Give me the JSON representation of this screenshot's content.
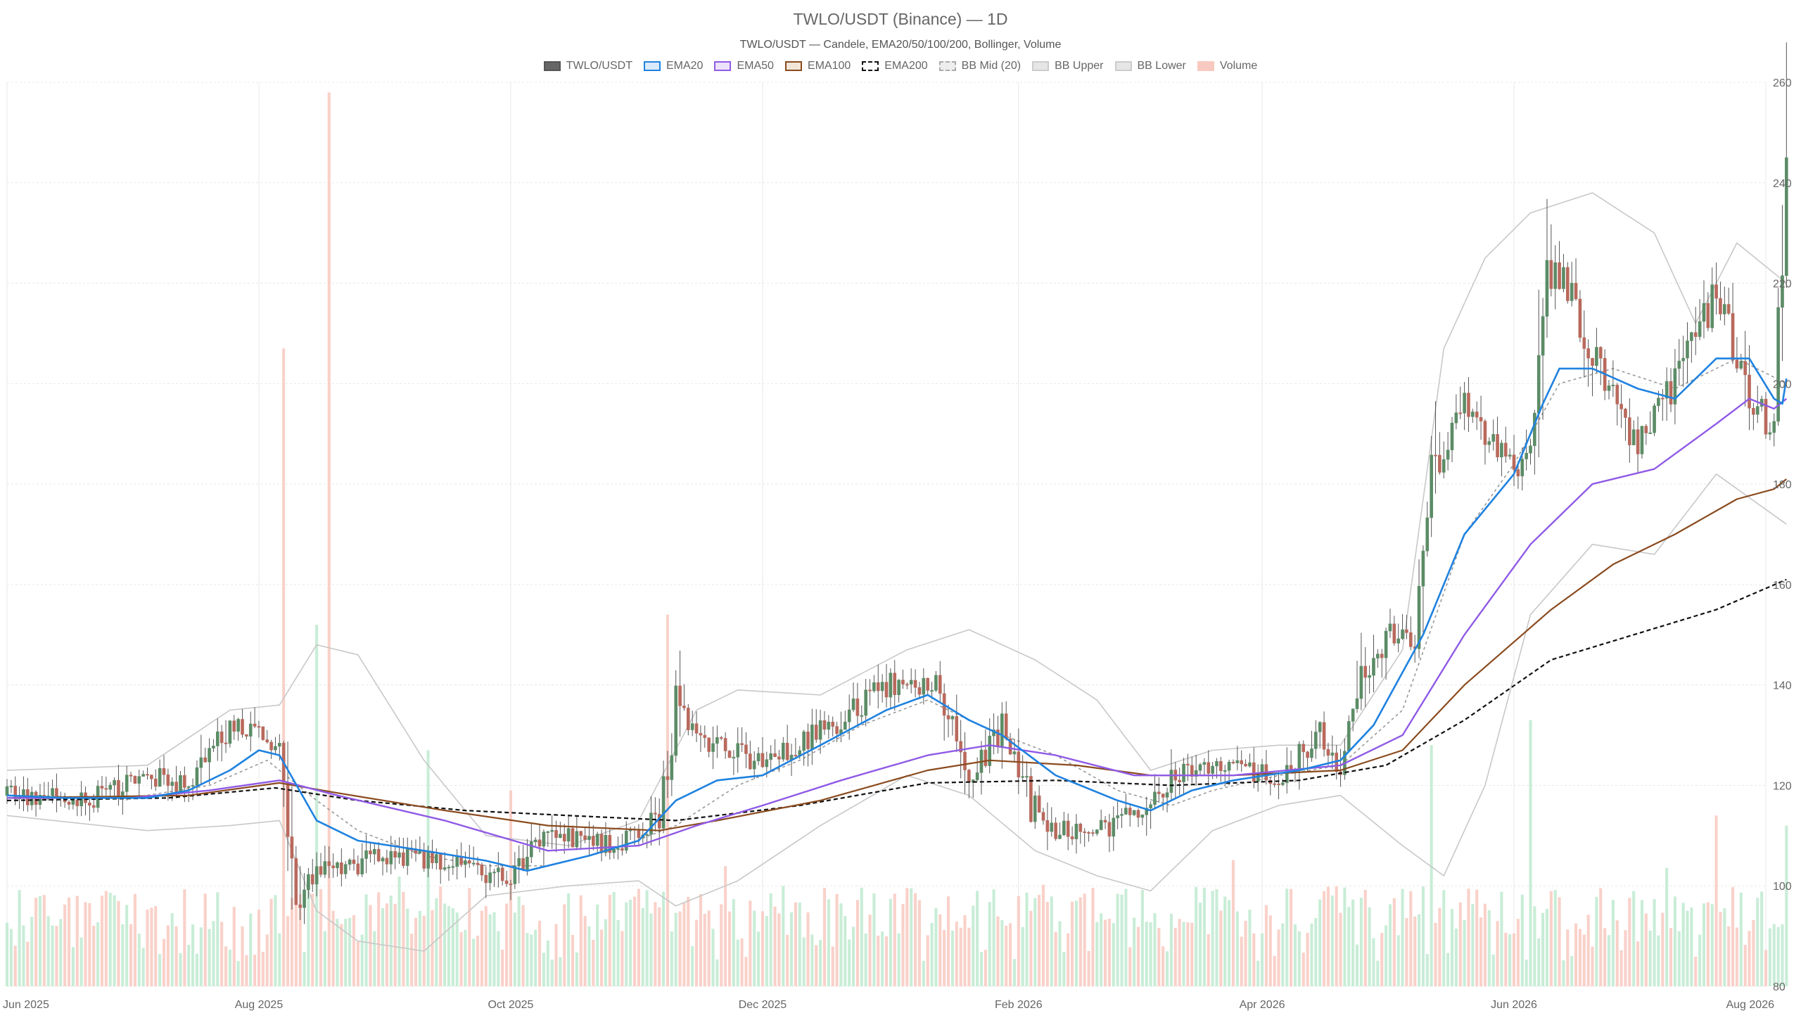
{
  "chart_data": {
    "type": "candlestick",
    "title": "TWLO/USDT (Binance) — 1D",
    "subtitle": "TWLO/USDT — Candele, EMA20/50/100/200, Bollinger, Volume",
    "legend": {
      "placement": "top-center",
      "items": [
        {
          "label": "TWLO/USDT",
          "fill": "#666666",
          "border": "#555555",
          "dashed": false
        },
        {
          "label": "EMA20",
          "fill": "#dbeafa",
          "border": "#1f82e0",
          "dashed": false
        },
        {
          "label": "EMA50",
          "fill": "#ece3fb",
          "border": "#8f5ae6",
          "dashed": false
        },
        {
          "label": "EMA100",
          "fill": "#f2e6d9",
          "border": "#8a4a1e",
          "dashed": false
        },
        {
          "label": "EMA200",
          "fill": "#ffffff",
          "border": "#111111",
          "dashed": true
        },
        {
          "label": "BB Mid (20)",
          "fill": "#eeeeee",
          "border": "#aaaaaa",
          "dashed": true
        },
        {
          "label": "BB Upper",
          "fill": "#e6e6e6",
          "border": "#cccccc",
          "dashed": false
        },
        {
          "label": "BB Lower",
          "fill": "#e6e6e6",
          "border": "#cccccc",
          "dashed": false
        },
        {
          "label": "Volume",
          "fill": "#f8c9c0",
          "border": "#f8c9c0",
          "dashed": false
        }
      ]
    },
    "x_axis": {
      "range": [
        "2025-06-01",
        "2026-08-01"
      ],
      "ticks": [
        {
          "date": "2025-06-01",
          "label": "Jun 2025"
        },
        {
          "date": "2025-08-01",
          "label": "Aug 2025"
        },
        {
          "date": "2025-10-01",
          "label": "Oct 2025"
        },
        {
          "date": "2025-12-01",
          "label": "Dec 2025"
        },
        {
          "date": "2026-02-01",
          "label": "Feb 2026"
        },
        {
          "date": "2026-04-01",
          "label": "Apr 2026"
        },
        {
          "date": "2026-06-01",
          "label": "Jun 2026"
        },
        {
          "date": "2026-08-01",
          "label": "Aug 2026"
        }
      ]
    },
    "y_axis": {
      "position": "right",
      "range": [
        80,
        260
      ],
      "ticks": [
        80,
        100,
        120,
        140,
        160,
        180,
        200,
        220,
        240,
        260
      ]
    },
    "grid": true,
    "colors": {
      "up": "#5b8c66",
      "down": "#b9695c",
      "volume_up": "#bfead0",
      "volume_down": "#f8c9c0",
      "ema20": "#1f82e0",
      "ema50": "#8f5ae6",
      "ema100": "#8a4a1e",
      "ema200": "#111111",
      "bb_mid": "#999999",
      "bb_band": "#c8c8c8",
      "grid": "#e8e8e8"
    },
    "price_anchors": [
      [
        "2025-06-01",
        118
      ],
      [
        "2025-06-20",
        117
      ],
      [
        "2025-07-05",
        122
      ],
      [
        "2025-07-15",
        120
      ],
      [
        "2025-07-25",
        132
      ],
      [
        "2025-08-06",
        128
      ],
      [
        "2025-08-10",
        100
      ],
      [
        "2025-08-18",
        103
      ],
      [
        "2025-09-01",
        106
      ],
      [
        "2025-09-20",
        104
      ],
      [
        "2025-10-01",
        101
      ],
      [
        "2025-10-10",
        110
      ],
      [
        "2025-10-25",
        108
      ],
      [
        "2025-11-06",
        113
      ],
      [
        "2025-11-10",
        134
      ],
      [
        "2025-11-20",
        128
      ],
      [
        "2025-12-01",
        124
      ],
      [
        "2025-12-20",
        133
      ],
      [
        "2025-12-31",
        140
      ],
      [
        "2026-01-12",
        140
      ],
      [
        "2026-01-20",
        122
      ],
      [
        "2026-01-28",
        132
      ],
      [
        "2026-02-06",
        112
      ],
      [
        "2026-02-18",
        110
      ],
      [
        "2026-03-01",
        114
      ],
      [
        "2026-03-10",
        122
      ],
      [
        "2026-03-25",
        124
      ],
      [
        "2026-04-05",
        121
      ],
      [
        "2026-04-15",
        130
      ],
      [
        "2026-04-20",
        123
      ],
      [
        "2026-04-25",
        140
      ],
      [
        "2026-05-01",
        150
      ],
      [
        "2026-05-08",
        148
      ],
      [
        "2026-05-12",
        180
      ],
      [
        "2026-05-20",
        195
      ],
      [
        "2026-06-01",
        182
      ],
      [
        "2026-06-05",
        188
      ],
      [
        "2026-06-08",
        226
      ],
      [
        "2026-06-15",
        218
      ],
      [
        "2026-06-20",
        205
      ],
      [
        "2026-07-01",
        188
      ],
      [
        "2026-07-10",
        200
      ],
      [
        "2026-07-20",
        218
      ],
      [
        "2026-07-28",
        198
      ],
      [
        "2026-08-03",
        190
      ],
      [
        "2026-08-05",
        228
      ],
      [
        "2026-08-06",
        245
      ]
    ],
    "volume_spikes": [
      [
        "2025-08-07",
        207
      ],
      [
        "2025-08-18",
        258
      ],
      [
        "2025-08-15",
        152
      ],
      [
        "2025-11-08",
        154
      ],
      [
        "2025-09-11",
        127
      ],
      [
        "2025-10-01",
        119
      ],
      [
        "2026-05-12",
        128
      ],
      [
        "2026-06-05",
        133
      ],
      [
        "2026-07-20",
        114
      ],
      [
        "2026-08-06",
        112
      ]
    ],
    "series": {
      "ema20": [
        [
          "2025-06-01",
          118
        ],
        [
          "2025-06-15",
          117.5
        ],
        [
          "2025-07-05",
          117.5
        ],
        [
          "2025-07-15",
          119
        ],
        [
          "2025-07-25",
          123
        ],
        [
          "2025-08-01",
          127
        ],
        [
          "2025-08-06",
          126
        ],
        [
          "2025-08-15",
          113
        ],
        [
          "2025-08-25",
          109
        ],
        [
          "2025-09-10",
          107
        ],
        [
          "2025-09-25",
          105
        ],
        [
          "2025-10-05",
          103
        ],
        [
          "2025-10-20",
          106
        ],
        [
          "2025-11-01",
          109
        ],
        [
          "2025-11-10",
          117
        ],
        [
          "2025-11-20",
          121
        ],
        [
          "2025-12-01",
          122
        ],
        [
          "2025-12-15",
          128
        ],
        [
          "2025-12-31",
          135
        ],
        [
          "2026-01-10",
          138
        ],
        [
          "2026-01-20",
          133
        ],
        [
          "2026-01-28",
          130
        ],
        [
          "2026-02-10",
          122
        ],
        [
          "2026-02-25",
          117
        ],
        [
          "2026-03-05",
          115
        ],
        [
          "2026-03-15",
          119
        ],
        [
          "2026-03-25",
          121
        ],
        [
          "2026-04-10",
          123
        ],
        [
          "2026-04-20",
          125
        ],
        [
          "2026-04-28",
          132
        ],
        [
          "2026-05-10",
          150
        ],
        [
          "2026-05-20",
          170
        ],
        [
          "2026-06-01",
          182
        ],
        [
          "2026-06-08",
          196
        ],
        [
          "2026-06-12",
          203
        ],
        [
          "2026-06-20",
          203
        ],
        [
          "2026-07-01",
          199
        ],
        [
          "2026-07-10",
          197
        ],
        [
          "2026-07-20",
          205
        ],
        [
          "2026-07-28",
          205
        ],
        [
          "2026-08-03",
          197
        ],
        [
          "2026-08-05",
          196
        ],
        [
          "2026-08-06",
          201
        ]
      ],
      "ema50": [
        [
          "2025-06-01",
          117.5
        ],
        [
          "2025-07-01",
          117.5
        ],
        [
          "2025-07-20",
          119
        ],
        [
          "2025-08-06",
          121
        ],
        [
          "2025-08-20",
          118
        ],
        [
          "2025-09-15",
          113
        ],
        [
          "2025-10-10",
          107
        ],
        [
          "2025-11-01",
          108
        ],
        [
          "2025-11-15",
          112
        ],
        [
          "2025-12-01",
          116
        ],
        [
          "2025-12-20",
          121
        ],
        [
          "2026-01-10",
          126
        ],
        [
          "2026-01-25",
          128
        ],
        [
          "2026-02-10",
          126
        ],
        [
          "2026-03-01",
          122
        ],
        [
          "2026-03-25",
          122
        ],
        [
          "2026-04-20",
          124
        ],
        [
          "2026-05-05",
          130
        ],
        [
          "2026-05-20",
          150
        ],
        [
          "2026-06-05",
          168
        ],
        [
          "2026-06-20",
          180
        ],
        [
          "2026-07-05",
          183
        ],
        [
          "2026-07-20",
          192
        ],
        [
          "2026-07-28",
          197
        ],
        [
          "2026-08-03",
          195
        ],
        [
          "2026-08-06",
          197
        ]
      ],
      "ema100": [
        [
          "2025-06-01",
          117.5
        ],
        [
          "2025-07-15",
          118
        ],
        [
          "2025-08-06",
          120.5
        ],
        [
          "2025-08-20",
          118.5
        ],
        [
          "2025-09-15",
          115
        ],
        [
          "2025-10-10",
          112
        ],
        [
          "2025-11-06",
          111
        ],
        [
          "2025-11-20",
          113
        ],
        [
          "2025-12-15",
          117
        ],
        [
          "2026-01-10",
          123
        ],
        [
          "2026-01-25",
          125
        ],
        [
          "2026-02-15",
          124
        ],
        [
          "2026-03-05",
          122
        ],
        [
          "2026-03-25",
          122
        ],
        [
          "2026-04-20",
          123
        ],
        [
          "2026-05-05",
          127
        ],
        [
          "2026-05-20",
          140
        ],
        [
          "2026-06-10",
          155
        ],
        [
          "2026-06-25",
          164
        ],
        [
          "2026-07-10",
          170
        ],
        [
          "2026-07-25",
          177
        ],
        [
          "2026-08-03",
          179
        ],
        [
          "2026-08-06",
          181
        ]
      ],
      "ema200": [
        [
          "2025-06-01",
          117
        ],
        [
          "2025-07-10",
          117.5
        ],
        [
          "2025-08-05",
          119.5
        ],
        [
          "2025-08-25",
          117
        ],
        [
          "2025-09-20",
          115
        ],
        [
          "2025-10-15",
          114
        ],
        [
          "2025-11-10",
          113
        ],
        [
          "2025-12-10",
          116
        ],
        [
          "2026-01-10",
          120.5
        ],
        [
          "2026-02-10",
          121
        ],
        [
          "2026-03-10",
          120
        ],
        [
          "2026-04-10",
          121
        ],
        [
          "2026-05-01",
          124
        ],
        [
          "2026-05-20",
          133
        ],
        [
          "2026-06-10",
          145
        ],
        [
          "2026-06-30",
          150
        ],
        [
          "2026-07-20",
          155
        ],
        [
          "2026-08-06",
          161
        ]
      ],
      "bb_mid": [
        [
          "2025-06-01",
          118
        ],
        [
          "2025-07-01",
          117.5
        ],
        [
          "2025-07-20",
          120
        ],
        [
          "2025-08-03",
          125
        ],
        [
          "2025-08-15",
          117
        ],
        [
          "2025-08-25",
          111
        ],
        [
          "2025-09-10",
          106
        ],
        [
          "2025-09-25",
          104
        ],
        [
          "2025-10-10",
          104
        ],
        [
          "2025-10-25",
          107
        ],
        [
          "2025-11-10",
          112
        ],
        [
          "2025-11-25",
          120
        ],
        [
          "2025-12-10",
          125
        ],
        [
          "2025-12-25",
          132
        ],
        [
          "2026-01-10",
          137
        ],
        [
          "2026-01-25",
          131
        ],
        [
          "2026-02-10",
          126
        ],
        [
          "2026-02-25",
          119
        ],
        [
          "2026-03-10",
          116
        ],
        [
          "2026-03-20",
          119
        ],
        [
          "2026-04-05",
          122
        ],
        [
          "2026-04-20",
          124
        ],
        [
          "2026-05-05",
          135
        ],
        [
          "2026-05-20",
          170
        ],
        [
          "2026-06-01",
          184
        ],
        [
          "2026-06-12",
          200
        ],
        [
          "2026-06-25",
          203
        ],
        [
          "2026-07-10",
          199
        ],
        [
          "2026-07-25",
          205
        ],
        [
          "2026-08-06",
          200
        ]
      ],
      "bb_upper": [
        [
          "2025-06-01",
          123
        ],
        [
          "2025-07-05",
          124
        ],
        [
          "2025-07-25",
          135
        ],
        [
          "2025-08-06",
          136
        ],
        [
          "2025-08-15",
          148
        ],
        [
          "2025-08-25",
          146
        ],
        [
          "2025-09-10",
          125
        ],
        [
          "2025-09-25",
          110
        ],
        [
          "2025-10-15",
          108
        ],
        [
          "2025-11-01",
          113
        ],
        [
          "2025-11-15",
          135
        ],
        [
          "2025-11-25",
          139
        ],
        [
          "2025-12-15",
          138
        ],
        [
          "2026-01-05",
          147
        ],
        [
          "2026-01-20",
          151
        ],
        [
          "2026-02-05",
          145
        ],
        [
          "2026-02-20",
          137
        ],
        [
          "2026-03-05",
          123
        ],
        [
          "2026-03-20",
          127
        ],
        [
          "2026-04-05",
          128
        ],
        [
          "2026-04-20",
          128
        ],
        [
          "2026-05-05",
          147
        ],
        [
          "2026-05-15",
          207
        ],
        [
          "2026-05-25",
          225
        ],
        [
          "2026-06-05",
          234
        ],
        [
          "2026-06-20",
          238
        ],
        [
          "2026-07-05",
          230
        ],
        [
          "2026-07-15",
          212
        ],
        [
          "2026-07-25",
          228
        ],
        [
          "2026-08-06",
          220
        ]
      ],
      "bb_lower": [
        [
          "2025-06-01",
          114
        ],
        [
          "2025-07-05",
          111
        ],
        [
          "2025-07-25",
          112
        ],
        [
          "2025-08-06",
          113
        ],
        [
          "2025-08-15",
          95
        ],
        [
          "2025-08-25",
          89
        ],
        [
          "2025-09-10",
          87
        ],
        [
          "2025-09-25",
          98
        ],
        [
          "2025-10-15",
          100
        ],
        [
          "2025-11-01",
          101
        ],
        [
          "2025-11-10",
          96
        ],
        [
          "2025-11-25",
          101
        ],
        [
          "2025-12-15",
          112
        ],
        [
          "2026-01-05",
          122
        ],
        [
          "2026-01-20",
          118
        ],
        [
          "2026-02-05",
          107
        ],
        [
          "2026-02-20",
          102
        ],
        [
          "2026-03-05",
          99
        ],
        [
          "2026-03-20",
          111
        ],
        [
          "2026-04-05",
          116
        ],
        [
          "2026-04-20",
          118
        ],
        [
          "2026-05-05",
          108
        ],
        [
          "2026-05-15",
          102
        ],
        [
          "2026-05-25",
          120
        ],
        [
          "2026-06-05",
          154
        ],
        [
          "2026-06-20",
          168
        ],
        [
          "2026-07-05",
          166
        ],
        [
          "2026-07-20",
          182
        ],
        [
          "2026-08-06",
          172
        ]
      ]
    }
  }
}
